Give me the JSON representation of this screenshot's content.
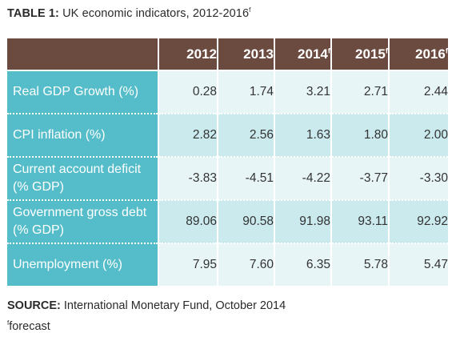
{
  "title": {
    "prefix": "TABLE 1:",
    "text": " UK economic indicators, 2012-2016",
    "sup": "f"
  },
  "table": {
    "columns": [
      {
        "label": "2012",
        "sup": ""
      },
      {
        "label": "2013",
        "sup": ""
      },
      {
        "label": "2014",
        "sup": "f"
      },
      {
        "label": "2015",
        "sup": "f"
      },
      {
        "label": "2016",
        "sup": "f"
      }
    ],
    "rows": [
      {
        "label": "Real GDP Growth (%)",
        "values": [
          "0.28",
          "1.74",
          "3.21",
          "2.71",
          "2.44"
        ]
      },
      {
        "label": "CPI inflation (%)",
        "values": [
          "2.82",
          "2.56",
          "1.63",
          "1.80",
          "2.00"
        ]
      },
      {
        "label": "Current account deficit (% GDP)",
        "values": [
          "-3.83",
          "-4.51",
          "-4.22",
          "-3.77",
          "-3.30"
        ]
      },
      {
        "label": "Government gross debt (% GDP)",
        "values": [
          "89.06",
          "90.58",
          "91.98",
          "93.11",
          "92.92"
        ]
      },
      {
        "label": "Unemployment (%)",
        "values": [
          "7.95",
          "7.60",
          "6.35",
          "5.78",
          "5.47"
        ]
      }
    ]
  },
  "source": {
    "label": "SOURCE:",
    "text": " International Monetary Fund, October 2014"
  },
  "footnote": {
    "sup": "f",
    "text": "forecast"
  },
  "colors": {
    "header_bg": "#6b4a40",
    "label_bg": "#55bcc9",
    "row_light": "#e8f5f7",
    "row_dark": "#cbeaee"
  }
}
